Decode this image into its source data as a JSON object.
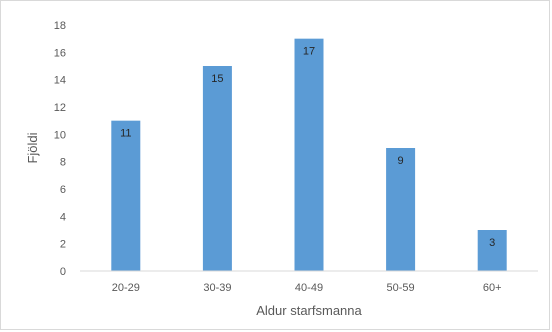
{
  "chart_data": {
    "type": "bar",
    "categories": [
      "20-29",
      "30-39",
      "40-49",
      "50-59",
      "60+"
    ],
    "values": [
      11,
      15,
      17,
      9,
      3
    ],
    "data_labels": [
      "11",
      "15",
      "17",
      "9",
      "3"
    ],
    "title": "",
    "xlabel": "Aldur starfsmanna",
    "ylabel": "Fjöldi",
    "ylim": [
      0,
      18
    ],
    "yticks": [
      0,
      2,
      4,
      6,
      8,
      10,
      12,
      14,
      16,
      18
    ],
    "grid": false,
    "legend": "none",
    "bar_color": "#5b9bd5"
  }
}
